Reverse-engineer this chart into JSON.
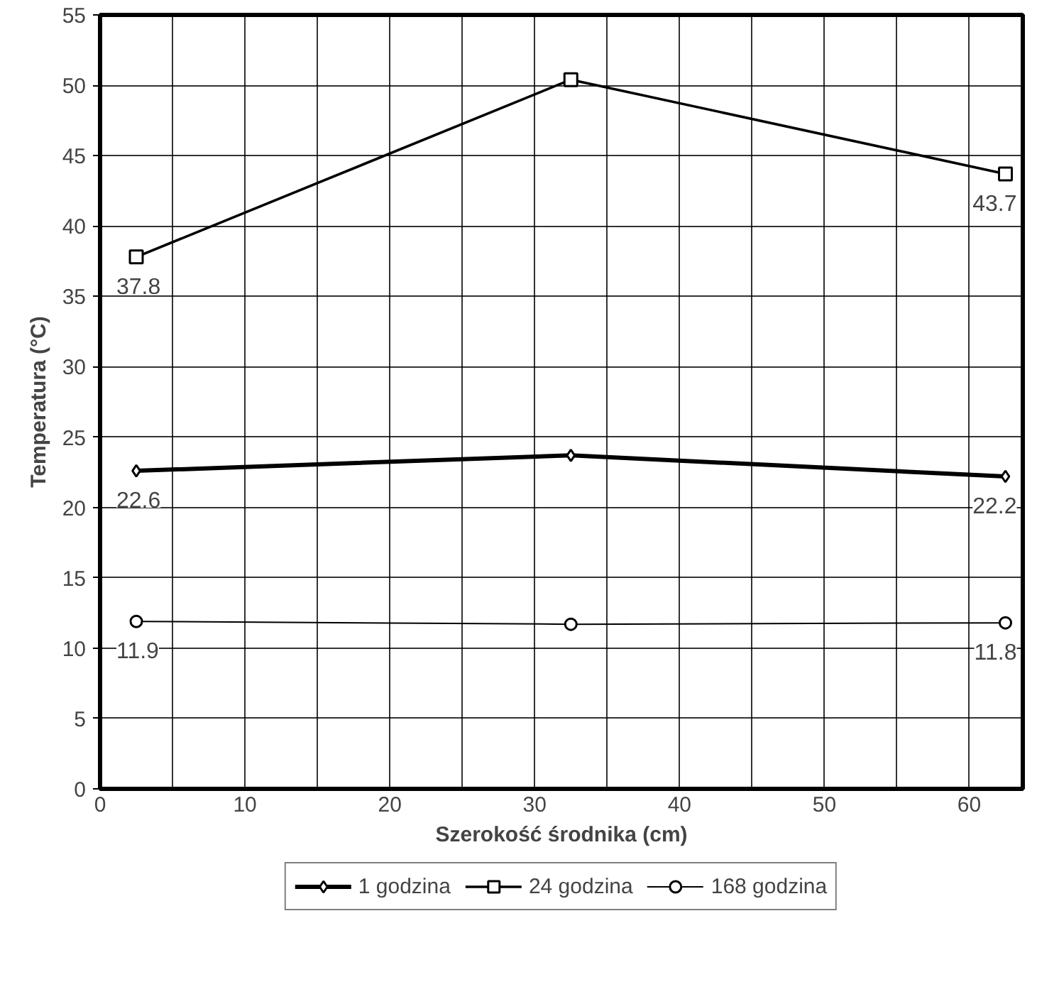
{
  "chart_data": {
    "type": "line",
    "xlabel": "Szerokość środnika (cm)",
    "ylabel": "Temperatura (°C)",
    "x": [
      2.5,
      32.5,
      62.5
    ],
    "series": [
      {
        "name": "1 godzina",
        "color": "#000000",
        "marker": "diamond",
        "values": [
          22.6,
          23.7,
          22.2
        ],
        "value_labels": [
          "22.6",
          null,
          "22.2"
        ]
      },
      {
        "name": "24 godzina",
        "color": "#000000",
        "marker": "square",
        "values": [
          37.8,
          50.4,
          43.7
        ],
        "value_labels": [
          "37.8",
          null,
          "43.7"
        ]
      },
      {
        "name": "168 godzina",
        "color": "#000000",
        "marker": "circle",
        "values": [
          11.9,
          11.7,
          11.8
        ],
        "value_labels": [
          "11.9",
          null,
          "11.8"
        ]
      }
    ],
    "xlim": [
      0,
      63.7
    ],
    "xticks": [
      0,
      {
        "value": 5,
        "label": null
      },
      10,
      {
        "value": 15,
        "label": null
      },
      20,
      {
        "value": 25,
        "label": null
      },
      30,
      {
        "value": 35,
        "label": null
      },
      40,
      {
        "value": 45,
        "label": null
      },
      50,
      {
        "value": 55,
        "label": null
      },
      60
    ],
    "ylim": [
      0,
      55
    ],
    "yticks": [
      0,
      5,
      10,
      15,
      20,
      25,
      30,
      35,
      40,
      45,
      50,
      55
    ],
    "grid": true,
    "legend": "bottom",
    "line_style": "solid"
  }
}
